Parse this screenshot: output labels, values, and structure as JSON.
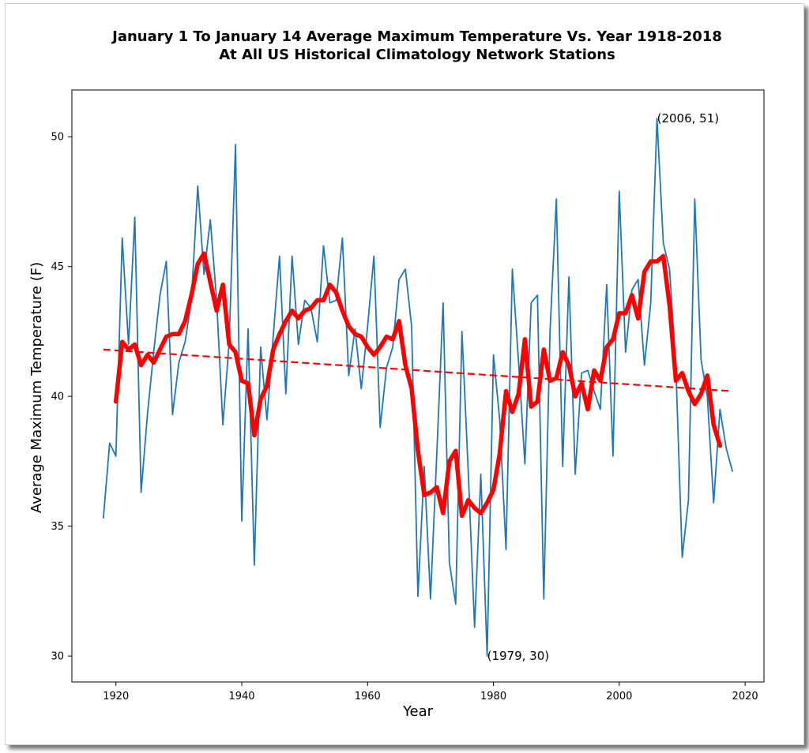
{
  "chart_data": {
    "type": "line",
    "title": "January 1 To January 14 Average Maximum Temperature Vs. Year 1918-2018",
    "subtitle": "At All US Historical Climatology Network Stations",
    "xlabel": "Year",
    "ylabel": "Average Maximum Temperature (F)",
    "xlim": [
      1913,
      2023
    ],
    "ylim": [
      29,
      51.8
    ],
    "xticks": [
      1920,
      1940,
      1960,
      1980,
      2000,
      2020
    ],
    "yticks": [
      30,
      35,
      40,
      45,
      50
    ],
    "grid": false,
    "colors": {
      "raw": "#1f77b4",
      "smoothed": "#ff0000",
      "trend": "#ff0000"
    },
    "series": [
      {
        "style": "thin-line",
        "x": [
          1918,
          1919,
          1920,
          1921,
          1922,
          1923,
          1924,
          1925,
          1926,
          1927,
          1928,
          1929,
          1930,
          1931,
          1932,
          1933,
          1934,
          1935,
          1936,
          1937,
          1938,
          1939,
          1940,
          1941,
          1942,
          1943,
          1944,
          1945,
          1946,
          1947,
          1948,
          1949,
          1950,
          1951,
          1952,
          1953,
          1954,
          1955,
          1956,
          1957,
          1958,
          1959,
          1960,
          1961,
          1962,
          1963,
          1964,
          1965,
          1966,
          1967,
          1968,
          1969,
          1970,
          1971,
          1972,
          1973,
          1974,
          1975,
          1976,
          1977,
          1978,
          1979,
          1980,
          1981,
          1982,
          1983,
          1984,
          1985,
          1986,
          1987,
          1988,
          1989,
          1990,
          1991,
          1992,
          1993,
          1994,
          1995,
          1996,
          1997,
          1998,
          1999,
          2000,
          2001,
          2002,
          2003,
          2004,
          2005,
          2006,
          2007,
          2008,
          2009,
          2010,
          2011,
          2012,
          2013,
          2014,
          2015,
          2016,
          2017,
          2018
        ],
        "y": [
          35.3,
          38.2,
          37.7,
          46.1,
          42.0,
          46.9,
          36.3,
          39.3,
          41.7,
          43.9,
          45.2,
          39.3,
          41.3,
          42.1,
          43.7,
          48.1,
          44.7,
          46.8,
          43.7,
          38.9,
          42.1,
          49.7,
          35.2,
          42.6,
          33.5,
          41.9,
          39.1,
          42.3,
          45.4,
          40.1,
          45.4,
          42.0,
          43.7,
          43.4,
          42.1,
          45.8,
          43.6,
          43.7,
          46.1,
          40.8,
          42.6,
          40.3,
          42.7,
          45.4,
          38.8,
          41.1,
          41.9,
          44.5,
          44.9,
          42.7,
          32.3,
          37.3,
          32.2,
          37.8,
          43.6,
          33.6,
          32.0,
          42.5,
          37.1,
          31.1,
          37.0,
          30.0,
          41.6,
          39.1,
          34.1,
          44.9,
          41.3,
          37.4,
          43.6,
          43.9,
          32.2,
          42.5,
          47.6,
          37.3,
          44.6,
          37.0,
          40.9,
          41.0,
          40.2,
          39.5,
          44.3,
          37.7,
          47.9,
          41.7,
          44.1,
          44.5,
          41.2,
          43.6,
          50.7,
          45.9,
          44.9,
          41.1,
          33.8,
          36.0,
          47.6,
          41.4,
          40.0,
          35.9,
          39.5,
          38.0,
          37.1
        ]
      },
      {
        "style": "thick-line",
        "x": [
          1920,
          1921,
          1922,
          1923,
          1924,
          1925,
          1926,
          1927,
          1928,
          1929,
          1930,
          1931,
          1932,
          1933,
          1934,
          1935,
          1936,
          1937,
          1938,
          1939,
          1940,
          1941,
          1942,
          1943,
          1944,
          1945,
          1946,
          1947,
          1948,
          1949,
          1950,
          1951,
          1952,
          1953,
          1954,
          1955,
          1956,
          1957,
          1958,
          1959,
          1960,
          1961,
          1962,
          1963,
          1964,
          1965,
          1966,
          1967,
          1968,
          1969,
          1970,
          1971,
          1972,
          1973,
          1974,
          1975,
          1976,
          1977,
          1978,
          1979,
          1980,
          1981,
          1982,
          1983,
          1984,
          1985,
          1986,
          1987,
          1988,
          1989,
          1990,
          1991,
          1992,
          1993,
          1994,
          1995,
          1996,
          1997,
          1998,
          1999,
          2000,
          2001,
          2002,
          2003,
          2004,
          2005,
          2006,
          2007,
          2008,
          2009,
          2010,
          2011,
          2012,
          2013,
          2014,
          2015,
          2016
        ],
        "y": [
          39.8,
          42.1,
          41.8,
          42.0,
          41.2,
          41.6,
          41.3,
          41.8,
          42.3,
          42.4,
          42.4,
          42.9,
          43.9,
          45.1,
          45.5,
          44.4,
          43.3,
          44.3,
          42.0,
          41.7,
          40.6,
          40.5,
          38.5,
          39.9,
          40.4,
          41.8,
          42.4,
          42.9,
          43.3,
          43.0,
          43.3,
          43.4,
          43.7,
          43.7,
          44.3,
          44.0,
          43.3,
          42.7,
          42.4,
          42.3,
          41.9,
          41.6,
          41.9,
          42.3,
          42.2,
          42.9,
          41.2,
          40.3,
          37.9,
          36.2,
          36.3,
          36.5,
          35.5,
          37.5,
          37.9,
          35.4,
          36.0,
          35.7,
          35.5,
          35.9,
          36.4,
          37.8,
          40.2,
          39.4,
          40.1,
          42.2,
          39.6,
          39.8,
          41.8,
          40.6,
          40.7,
          41.7,
          41.2,
          40.0,
          40.5,
          39.5,
          41.0,
          40.6,
          41.9,
          42.2,
          43.2,
          43.2,
          43.9,
          43.0,
          44.8,
          45.2,
          45.2,
          45.4,
          43.5,
          40.6,
          40.9,
          40.2,
          39.7,
          40.1,
          40.8,
          38.9,
          38.1
        ]
      },
      {
        "style": "dashed-line",
        "x": [
          1918,
          2018
        ],
        "y": [
          41.8,
          40.2
        ]
      }
    ],
    "annotations": [
      {
        "text": "(2006, 51)",
        "x": 2006,
        "y": 50.7
      },
      {
        "text": "(1979, 30)",
        "x": 1979,
        "y": 30.0
      }
    ]
  }
}
